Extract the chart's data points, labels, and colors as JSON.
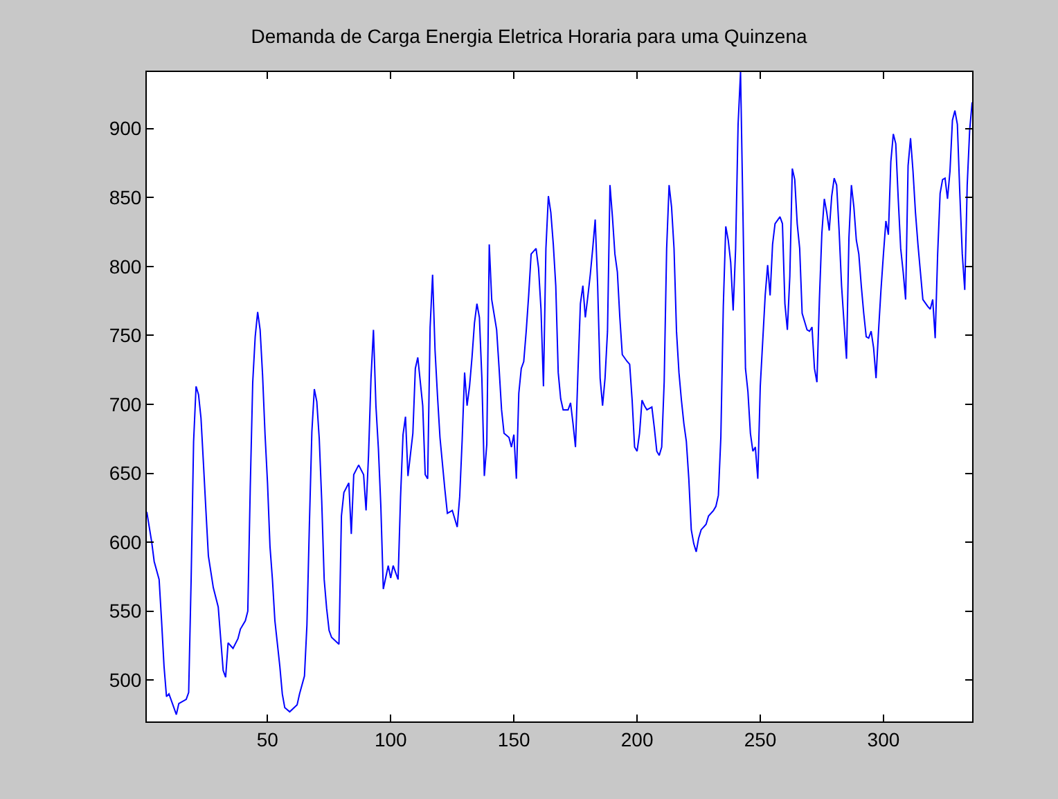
{
  "chart_data": {
    "type": "line",
    "title": "Demanda de Carga Energia Eletrica Horaria para uma Quinzena",
    "xlim": [
      1,
      336
    ],
    "ylim": [
      470,
      941
    ],
    "xticks": [
      50,
      100,
      150,
      200,
      250,
      300
    ],
    "yticks": [
      500,
      550,
      600,
      650,
      700,
      750,
      800,
      850,
      900
    ],
    "grid": false,
    "marker": "none",
    "line_style": "solid",
    "series": [
      {
        "color": "#0000ff",
        "x": [
          1,
          3,
          4,
          6,
          7,
          8,
          9,
          10,
          13,
          14,
          17,
          18,
          19,
          20,
          21,
          22,
          23,
          24,
          25,
          26,
          28,
          30,
          31,
          32,
          33,
          34,
          36,
          38,
          39,
          41,
          42,
          43,
          44,
          45,
          46,
          47,
          48,
          49,
          50,
          51,
          52,
          53,
          55,
          56,
          57,
          59,
          62,
          63,
          65,
          66,
          67,
          68,
          69,
          70,
          71,
          72,
          73,
          74,
          75,
          76,
          79,
          80,
          81,
          83,
          84,
          85,
          87,
          89,
          90,
          91,
          92,
          93,
          94,
          95,
          96,
          97,
          99,
          100,
          101,
          103,
          104,
          105,
          106,
          107,
          109,
          110,
          111,
          113,
          114,
          115,
          116,
          117,
          118,
          119,
          120,
          122,
          123,
          125,
          127,
          128,
          129,
          130,
          131,
          132,
          133,
          134,
          135,
          136,
          137,
          138,
          139,
          140,
          141,
          143,
          144,
          145,
          146,
          148,
          149,
          150,
          151,
          152,
          153,
          154,
          155,
          156,
          157,
          159,
          160,
          161,
          162,
          163,
          164,
          165,
          166,
          167,
          168,
          169,
          170,
          172,
          173,
          174,
          175,
          176,
          177,
          178,
          179,
          180,
          181,
          182,
          183,
          184,
          185,
          186,
          187,
          188,
          189,
          190,
          191,
          192,
          193,
          194,
          196,
          197,
          198,
          199,
          200,
          201,
          202,
          203,
          204,
          206,
          207,
          208,
          209,
          210,
          211,
          212,
          213,
          214,
          215,
          216,
          217,
          218,
          219,
          220,
          221,
          222,
          223,
          224,
          225,
          226,
          228,
          229,
          231,
          232,
          233,
          234,
          235,
          236,
          237,
          238,
          239,
          240,
          241,
          242,
          243,
          244,
          245,
          246,
          247,
          248,
          249,
          250,
          251,
          252,
          253,
          254,
          255,
          256,
          258,
          259,
          260,
          261,
          262,
          263,
          264,
          265,
          266,
          267,
          269,
          270,
          271,
          272,
          273,
          274,
          275,
          276,
          277,
          278,
          279,
          280,
          281,
          282,
          283,
          284,
          285,
          286,
          287,
          288,
          289,
          290,
          291,
          292,
          293,
          294,
          295,
          296,
          297,
          298,
          299,
          300,
          301,
          302,
          303,
          304,
          305,
          306,
          307,
          308,
          309,
          310,
          311,
          312,
          313,
          314,
          315,
          316,
          318,
          319,
          320,
          321,
          322,
          323,
          324,
          325,
          326,
          327,
          328,
          329,
          330,
          331,
          332,
          333,
          334,
          335,
          336
        ],
        "values": [
          622,
          600,
          586,
          573,
          543,
          510,
          488,
          490,
          475,
          483,
          486,
          491,
          573,
          673,
          713,
          707,
          690,
          657,
          623,
          590,
          567,
          553,
          530,
          507,
          502,
          527,
          523,
          530,
          537,
          543,
          550,
          640,
          716,
          749,
          767,
          754,
          721,
          678,
          643,
          597,
          573,
          543,
          510,
          490,
          480,
          477,
          482,
          490,
          503,
          540,
          613,
          680,
          711,
          702,
          675,
          630,
          573,
          552,
          536,
          531,
          526,
          619,
          636,
          643,
          606,
          649,
          656,
          649,
          623,
          663,
          719,
          754,
          699,
          668,
          626,
          566,
          583,
          574,
          583,
          573,
          633,
          678,
          691,
          648,
          679,
          726,
          734,
          699,
          649,
          646,
          756,
          794,
          739,
          706,
          676,
          638,
          621,
          623,
          611,
          633,
          674,
          723,
          699,
          713,
          734,
          759,
          773,
          763,
          719,
          648,
          671,
          816,
          776,
          754,
          726,
          696,
          679,
          676,
          669,
          678,
          646,
          708,
          726,
          731,
          753,
          779,
          809,
          813,
          799,
          769,
          713,
          813,
          851,
          839,
          816,
          786,
          723,
          704,
          696,
          696,
          701,
          686,
          669,
          723,
          773,
          786,
          763,
          778,
          794,
          813,
          834,
          786,
          719,
          699,
          719,
          753,
          859,
          836,
          809,
          796,
          763,
          736,
          731,
          729,
          703,
          669,
          666,
          679,
          703,
          699,
          696,
          698,
          683,
          666,
          663,
          669,
          716,
          813,
          859,
          843,
          813,
          753,
          723,
          703,
          686,
          673,
          646,
          609,
          599,
          593,
          603,
          609,
          613,
          619,
          623,
          626,
          634,
          676,
          771,
          829,
          819,
          803,
          768,
          813,
          903,
          941,
          836,
          726,
          709,
          679,
          666,
          669,
          646,
          713,
          746,
          779,
          801,
          779,
          816,
          831,
          836,
          831,
          773,
          754,
          793,
          871,
          863,
          831,
          813,
          766,
          754,
          753,
          756,
          726,
          716,
          776,
          824,
          849,
          839,
          826,
          851,
          864,
          859,
          826,
          786,
          759,
          733,
          821,
          859,
          843,
          819,
          809,
          786,
          766,
          749,
          748,
          753,
          741,
          719,
          753,
          783,
          809,
          833,
          823,
          876,
          896,
          889,
          849,
          813,
          796,
          776,
          873,
          893,
          869,
          839,
          816,
          796,
          776,
          771,
          769,
          776,
          748,
          809,
          853,
          863,
          864,
          849,
          869,
          906,
          913,
          903,
          853,
          809,
          783,
          859,
          899,
          919
        ]
      }
    ]
  }
}
